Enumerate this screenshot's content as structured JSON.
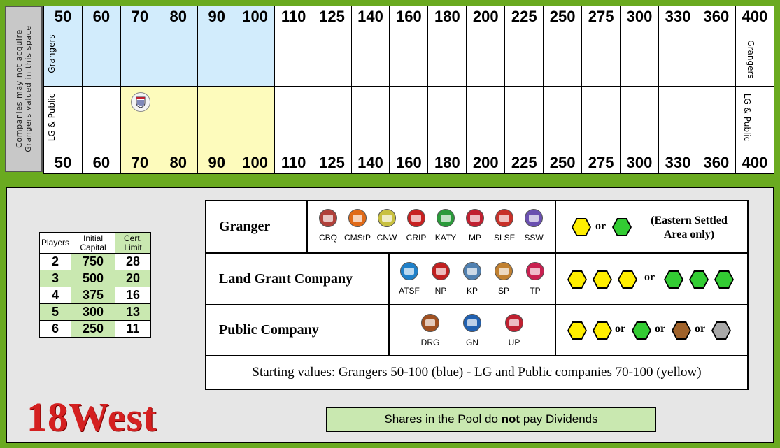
{
  "stock_market": {
    "side_note": [
      "Companies may not acquire",
      "Grangers  valued in this space"
    ],
    "row_top_label": "Grangers",
    "row_bottom_label": "LG & Public",
    "values": [
      "50",
      "60",
      "70",
      "80",
      "90",
      "100",
      "110",
      "125",
      "140",
      "160",
      "180",
      "200",
      "225",
      "250",
      "275",
      "300",
      "330",
      "360",
      "400"
    ],
    "colors": {
      "granger_start": "#d2ecfc",
      "lg_public_start": "#fdfbbc"
    }
  },
  "player_table": {
    "headers": [
      "Players",
      "Initial Capital",
      "Cert. Limit"
    ],
    "rows": [
      {
        "players": "2",
        "capital": "750",
        "limit": "28"
      },
      {
        "players": "3",
        "capital": "500",
        "limit": "20"
      },
      {
        "players": "4",
        "capital": "375",
        "limit": "16"
      },
      {
        "players": "5",
        "capital": "300",
        "limit": "13"
      },
      {
        "players": "6",
        "capital": "250",
        "limit": "11"
      }
    ]
  },
  "company_table": {
    "granger": {
      "name": "Granger",
      "companies": [
        "CBQ",
        "CMStP",
        "CNW",
        "CRIP",
        "KATY",
        "MP",
        "SLSF",
        "SSW"
      ],
      "logo_colors": [
        "#b0403a",
        "#e06a18",
        "#c8c040",
        "#c82020",
        "#2a9a3a",
        "#c02030",
        "#c83028",
        "#6a50b0"
      ],
      "or_text": "or",
      "note": "(Eastern Settled Area only)"
    },
    "land_grant": {
      "name": "Land Grant Company",
      "companies": [
        "ATSF",
        "NP",
        "KP",
        "SP",
        "TP"
      ],
      "logo_colors": [
        "#2080c8",
        "#c02020",
        "#5080b0",
        "#c08030",
        "#c82050"
      ],
      "or_text": "or"
    },
    "public": {
      "name": "Public Company",
      "companies": [
        "DRG",
        "GN",
        "UP"
      ],
      "logo_colors": [
        "#a05020",
        "#2060b0",
        "#c02030"
      ],
      "or_text": "or"
    },
    "starting_values": "Starting values:  Grangers 50-100 (blue)  -  LG and Public companies 70-100 (yellow)",
    "tile_colors": {
      "yellow": "#ffee00",
      "green": "#33cc33",
      "brown": "#a0622a",
      "gray": "#a8a8a8"
    }
  },
  "title": "18West",
  "pool_note": {
    "before": "Shares in the Pool do ",
    "bold": "not",
    "after": " pay Dividends"
  }
}
